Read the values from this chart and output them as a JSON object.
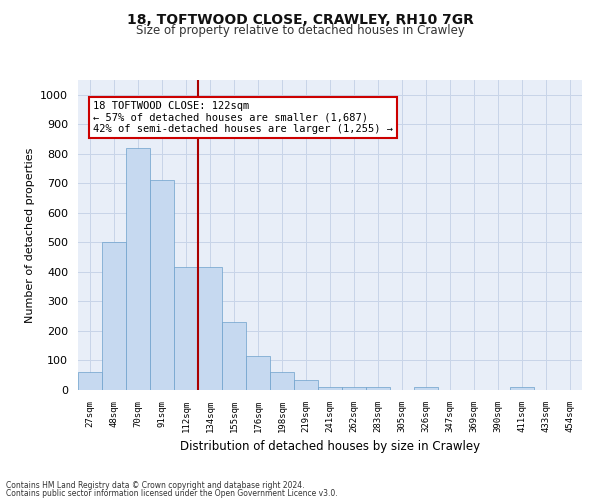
{
  "title1": "18, TOFTWOOD CLOSE, CRAWLEY, RH10 7GR",
  "title2": "Size of property relative to detached houses in Crawley",
  "xlabel": "Distribution of detached houses by size in Crawley",
  "ylabel": "Number of detached properties",
  "bin_labels": [
    "27sqm",
    "48sqm",
    "70sqm",
    "91sqm",
    "112sqm",
    "134sqm",
    "155sqm",
    "176sqm",
    "198sqm",
    "219sqm",
    "241sqm",
    "262sqm",
    "283sqm",
    "305sqm",
    "326sqm",
    "347sqm",
    "369sqm",
    "390sqm",
    "411sqm",
    "433sqm",
    "454sqm"
  ],
  "bar_heights": [
    60,
    500,
    820,
    710,
    415,
    415,
    230,
    115,
    60,
    35,
    10,
    10,
    10,
    0,
    10,
    0,
    0,
    0,
    10,
    0,
    0
  ],
  "bar_color": "#c6d9f0",
  "bar_edge_color": "#6ca0cc",
  "vline_color": "#aa0000",
  "annotation_text": "18 TOFTWOOD CLOSE: 122sqm\n← 57% of detached houses are smaller (1,687)\n42% of semi-detached houses are larger (1,255) →",
  "annotation_box_color": "#ffffff",
  "annotation_box_edge_color": "#cc0000",
  "ylim": [
    0,
    1050
  ],
  "yticks": [
    0,
    100,
    200,
    300,
    400,
    500,
    600,
    700,
    800,
    900,
    1000
  ],
  "grid_color": "#c8d4e8",
  "bg_color": "#e8eef8",
  "footer1": "Contains HM Land Registry data © Crown copyright and database right 2024.",
  "footer2": "Contains public sector information licensed under the Open Government Licence v3.0."
}
